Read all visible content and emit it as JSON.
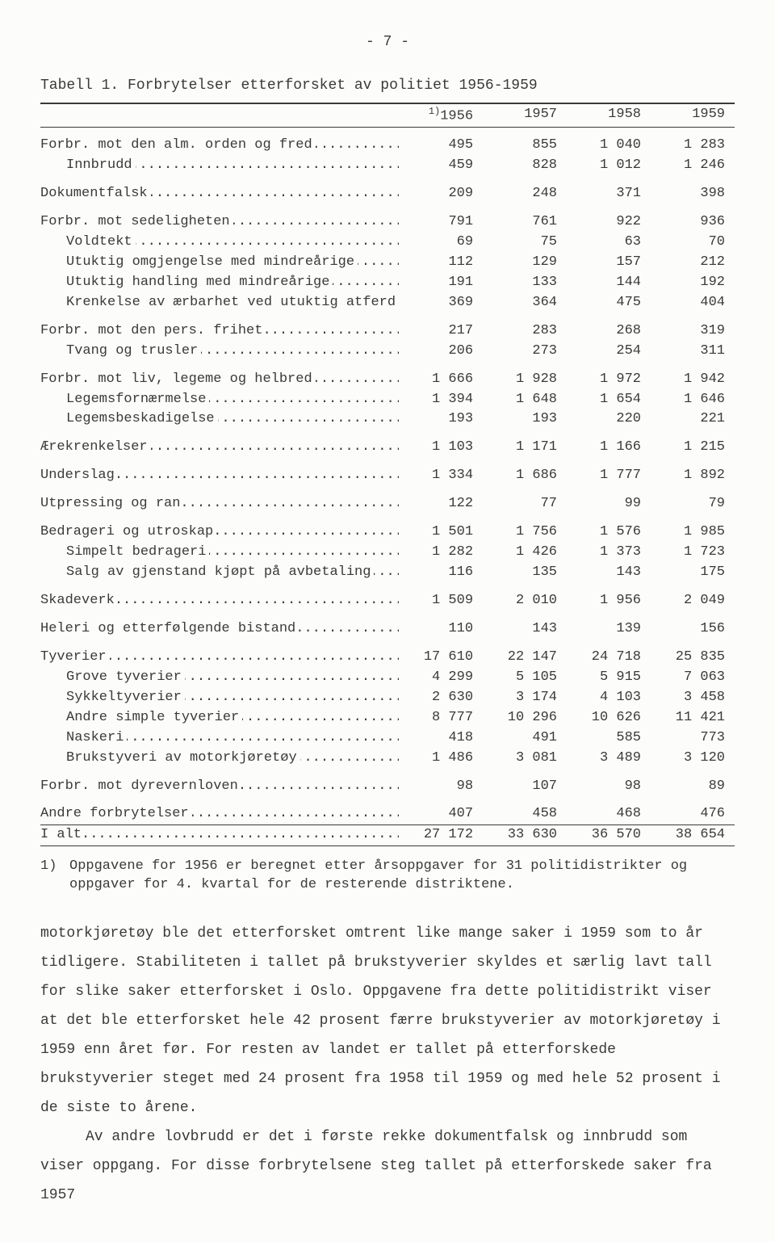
{
  "page_number": "- 7 -",
  "table_caption": "Tabell 1.  Forbrytelser etterforsket av politiet 1956-1959",
  "header_footnote_mark": "1)",
  "columns": [
    "1956",
    "1957",
    "1958",
    "1959"
  ],
  "rows": [
    {
      "type": "row",
      "indent": 0,
      "label": "Forbr. mot den alm. orden og fred",
      "v": [
        "495",
        "855",
        "1 040",
        "1 283"
      ]
    },
    {
      "type": "row",
      "indent": 1,
      "label": "Innbrudd",
      "v": [
        "459",
        "828",
        "1 012",
        "1 246"
      ]
    },
    {
      "type": "gap"
    },
    {
      "type": "row",
      "indent": 0,
      "label": "Dokumentfalsk",
      "v": [
        "209",
        "248",
        "371",
        "398"
      ]
    },
    {
      "type": "gap"
    },
    {
      "type": "row",
      "indent": 0,
      "label": "Forbr. mot sedeligheten",
      "v": [
        "791",
        "761",
        "922",
        "936"
      ]
    },
    {
      "type": "row",
      "indent": 1,
      "label": "Voldtekt",
      "v": [
        "69",
        "75",
        "63",
        "70"
      ]
    },
    {
      "type": "row",
      "indent": 1,
      "label": "Utuktig omgjengelse med mindreårige",
      "v": [
        "112",
        "129",
        "157",
        "212"
      ]
    },
    {
      "type": "row",
      "indent": 1,
      "label": "Utuktig handling med mindreårige",
      "v": [
        "191",
        "133",
        "144",
        "192"
      ]
    },
    {
      "type": "row",
      "indent": 1,
      "label": "Krenkelse av ærbarhet ved utuktig atferd",
      "v": [
        "369",
        "364",
        "475",
        "404"
      ]
    },
    {
      "type": "gap"
    },
    {
      "type": "row",
      "indent": 0,
      "label": "Forbr. mot den pers. frihet",
      "v": [
        "217",
        "283",
        "268",
        "319"
      ]
    },
    {
      "type": "row",
      "indent": 1,
      "label": "Tvang og trusler",
      "v": [
        "206",
        "273",
        "254",
        "311"
      ]
    },
    {
      "type": "gap"
    },
    {
      "type": "row",
      "indent": 0,
      "label": "Forbr. mot liv, legeme og helbred",
      "v": [
        "1 666",
        "1 928",
        "1 972",
        "1 942"
      ]
    },
    {
      "type": "row",
      "indent": 1,
      "label": "Legemsfornærmelse",
      "v": [
        "1 394",
        "1 648",
        "1 654",
        "1 646"
      ]
    },
    {
      "type": "row",
      "indent": 1,
      "label": "Legemsbeskadigelse",
      "v": [
        "193",
        "193",
        "220",
        "221"
      ]
    },
    {
      "type": "gap"
    },
    {
      "type": "row",
      "indent": 0,
      "label": "Ærekrenkelser",
      "v": [
        "1 103",
        "1 171",
        "1 166",
        "1 215"
      ]
    },
    {
      "type": "gap"
    },
    {
      "type": "row",
      "indent": 0,
      "label": "Underslag",
      "v": [
        "1 334",
        "1 686",
        "1 777",
        "1 892"
      ]
    },
    {
      "type": "gap"
    },
    {
      "type": "row",
      "indent": 0,
      "label": "Utpressing og ran",
      "v": [
        "122",
        "77",
        "99",
        "79"
      ]
    },
    {
      "type": "gap"
    },
    {
      "type": "row",
      "indent": 0,
      "label": "Bedrageri og utroskap",
      "v": [
        "1 501",
        "1 756",
        "1 576",
        "1 985"
      ]
    },
    {
      "type": "row",
      "indent": 1,
      "label": "Simpelt bedrageri",
      "v": [
        "1 282",
        "1 426",
        "1 373",
        "1 723"
      ]
    },
    {
      "type": "row",
      "indent": 1,
      "label": "Salg av gjenstand kjøpt på avbetaling",
      "v": [
        "116",
        "135",
        "143",
        "175"
      ]
    },
    {
      "type": "gap"
    },
    {
      "type": "row",
      "indent": 0,
      "label": "Skadeverk",
      "v": [
        "1 509",
        "2 010",
        "1 956",
        "2 049"
      ]
    },
    {
      "type": "gap"
    },
    {
      "type": "row",
      "indent": 0,
      "label": "Heleri og etterfølgende bistand",
      "v": [
        "110",
        "143",
        "139",
        "156"
      ]
    },
    {
      "type": "gap"
    },
    {
      "type": "row",
      "indent": 0,
      "label": "Tyverier",
      "v": [
        "17 610",
        "22 147",
        "24 718",
        "25 835"
      ]
    },
    {
      "type": "row",
      "indent": 1,
      "label": "Grove tyverier",
      "v": [
        "4 299",
        "5 105",
        "5 915",
        "7 063"
      ]
    },
    {
      "type": "row",
      "indent": 1,
      "label": "Sykkeltyverier",
      "v": [
        "2 630",
        "3 174",
        "4 103",
        "3 458"
      ]
    },
    {
      "type": "row",
      "indent": 1,
      "label": "Andre simple tyverier",
      "v": [
        "8 777",
        "10 296",
        "10 626",
        "11 421"
      ]
    },
    {
      "type": "row",
      "indent": 1,
      "label": "Naskeri",
      "v": [
        "418",
        "491",
        "585",
        "773"
      ]
    },
    {
      "type": "row",
      "indent": 1,
      "label": "Brukstyveri av motorkjøretøy",
      "v": [
        "1 486",
        "3 081",
        "3 489",
        "3 120"
      ]
    },
    {
      "type": "gap"
    },
    {
      "type": "row",
      "indent": 0,
      "label": "Forbr. mot dyrevernloven",
      "v": [
        "98",
        "107",
        "98",
        "89"
      ]
    },
    {
      "type": "gap"
    },
    {
      "type": "row",
      "indent": 0,
      "label": "Andre forbrytelser",
      "v": [
        "407",
        "458",
        "468",
        "476"
      ]
    }
  ],
  "total_row": {
    "label": "I alt",
    "v": [
      "27 172",
      "33 630",
      "36 570",
      "38 654"
    ]
  },
  "footnote_num": "1)",
  "footnote_text": "Oppgavene for 1956 er beregnet etter årsoppgaver for 31 politidistrikter og oppgaver for 4. kvartal for de resterende distriktene.",
  "paragraphs": [
    "motorkjøretøy ble det etterforsket omtrent like mange saker i 1959 som to år tidligere. Stabiliteten i tallet på brukstyverier skyldes et særlig lavt tall for slike saker etterforsket i Oslo. Oppgavene fra dette politidistrikt viser at det ble etterforsket hele 42 prosent færre brukstyverier av motorkjøretøy i 1959 enn året før. For resten av landet er tallet på etterforskede brukstyverier steget med 24 prosent fra 1958 til 1959 og med hele 52 prosent i de siste to årene.",
    "Av andre lovbrudd er det i første rekke dokumentfalsk og innbrudd som viser oppgang. For disse forbrytelsene steg tallet på etterforskede saker fra 1957"
  ],
  "colors": {
    "text": "#3a3a38",
    "bg": "#fcfcfa",
    "rule": "#3a3a38"
  },
  "typography": {
    "family": "Courier New / typewriter",
    "body_size_pt": 12,
    "line_height_body": 2.0
  }
}
